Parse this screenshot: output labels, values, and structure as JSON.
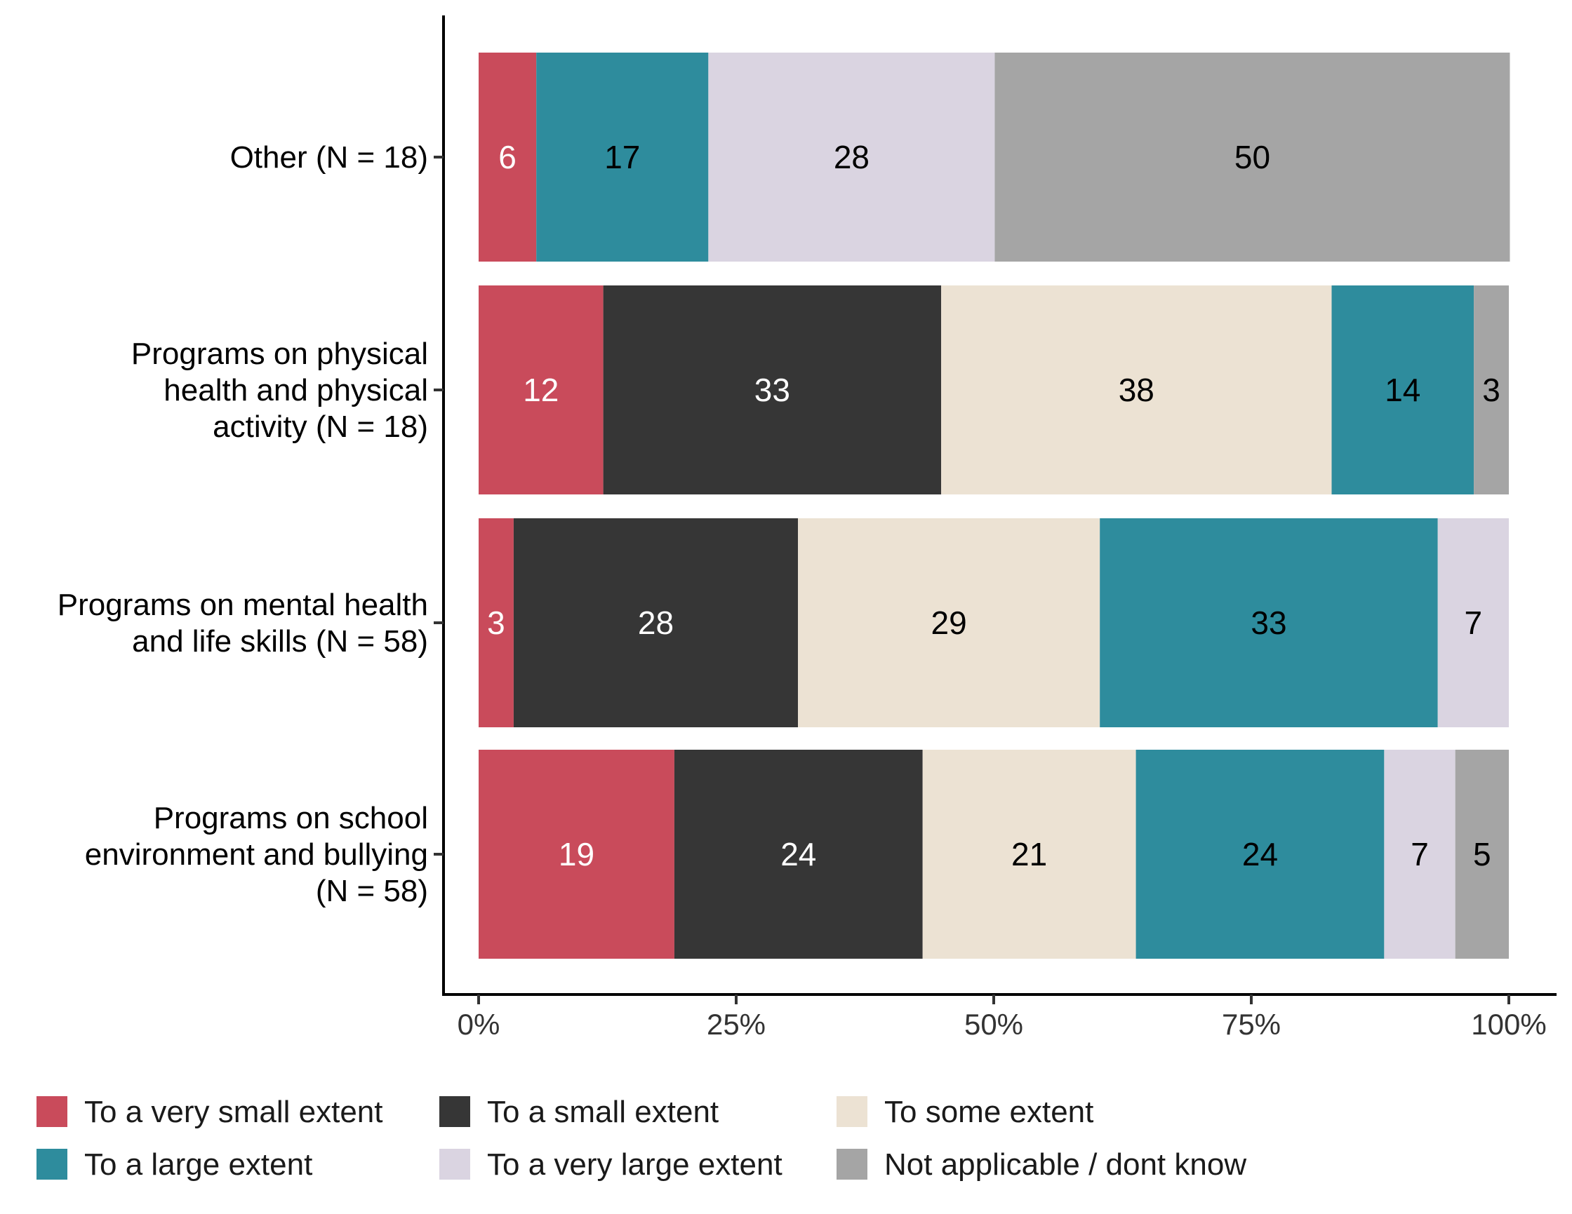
{
  "chart_data": {
    "type": "bar",
    "orientation": "horizontal",
    "stacked": true,
    "title": "",
    "xlabel": "",
    "ylabel": "",
    "xlim": [
      0,
      100
    ],
    "x_ticks": [
      "0%",
      "25%",
      "50%",
      "75%",
      "100%"
    ],
    "grid": false,
    "legend_position": "bottom",
    "categories": [
      "Other (N = 18)",
      "Programs on physical health and physical activity (N = 18)",
      "Programs on mental health and life skills (N = 58)",
      "Programs on school environment and bullying (N = 58)"
    ],
    "category_lines": [
      [
        "Other (N = 18)"
      ],
      [
        "Programs on physical",
        "health and physical",
        "activity (N = 18)"
      ],
      [
        "Programs on mental health",
        "and life skills (N = 58)"
      ],
      [
        "Programs on school",
        "environment and bullying",
        "(N = 58)"
      ]
    ],
    "series": [
      {
        "name": "To a very small extent",
        "color": "#C94B5B",
        "label_color": "#ffffff",
        "values": [
          6,
          12,
          3,
          19
        ],
        "segment_values": [
          5.6,
          12.1,
          3.4,
          19.0
        ]
      },
      {
        "name": "To a small extent",
        "color": "#363636",
        "label_color": "#ffffff",
        "values": [
          null,
          33,
          28,
          24
        ],
        "segment_values": [
          0,
          32.8,
          27.6,
          24.1
        ]
      },
      {
        "name": "To some extent",
        "color": "#ECE2D3",
        "label_color": "#000000",
        "values": [
          null,
          38,
          29,
          21
        ],
        "segment_values": [
          0,
          37.9,
          29.3,
          20.7
        ]
      },
      {
        "name": "To a large extent",
        "color": "#2E8C9D",
        "label_color": "#000000",
        "values": [
          17,
          14,
          33,
          24
        ],
        "segment_values": [
          16.7,
          13.8,
          32.8,
          24.1
        ]
      },
      {
        "name": "To a very large extent",
        "color": "#DAD4E1",
        "label_color": "#000000",
        "values": [
          28,
          null,
          7,
          7
        ],
        "segment_values": [
          27.8,
          0,
          6.9,
          6.9
        ]
      },
      {
        "name": "Not applicable / dont know",
        "color": "#A5A5A5",
        "label_color": "#000000",
        "values": [
          50,
          3,
          null,
          5
        ],
        "segment_values": [
          50.0,
          3.4,
          0,
          5.2
        ]
      }
    ]
  }
}
